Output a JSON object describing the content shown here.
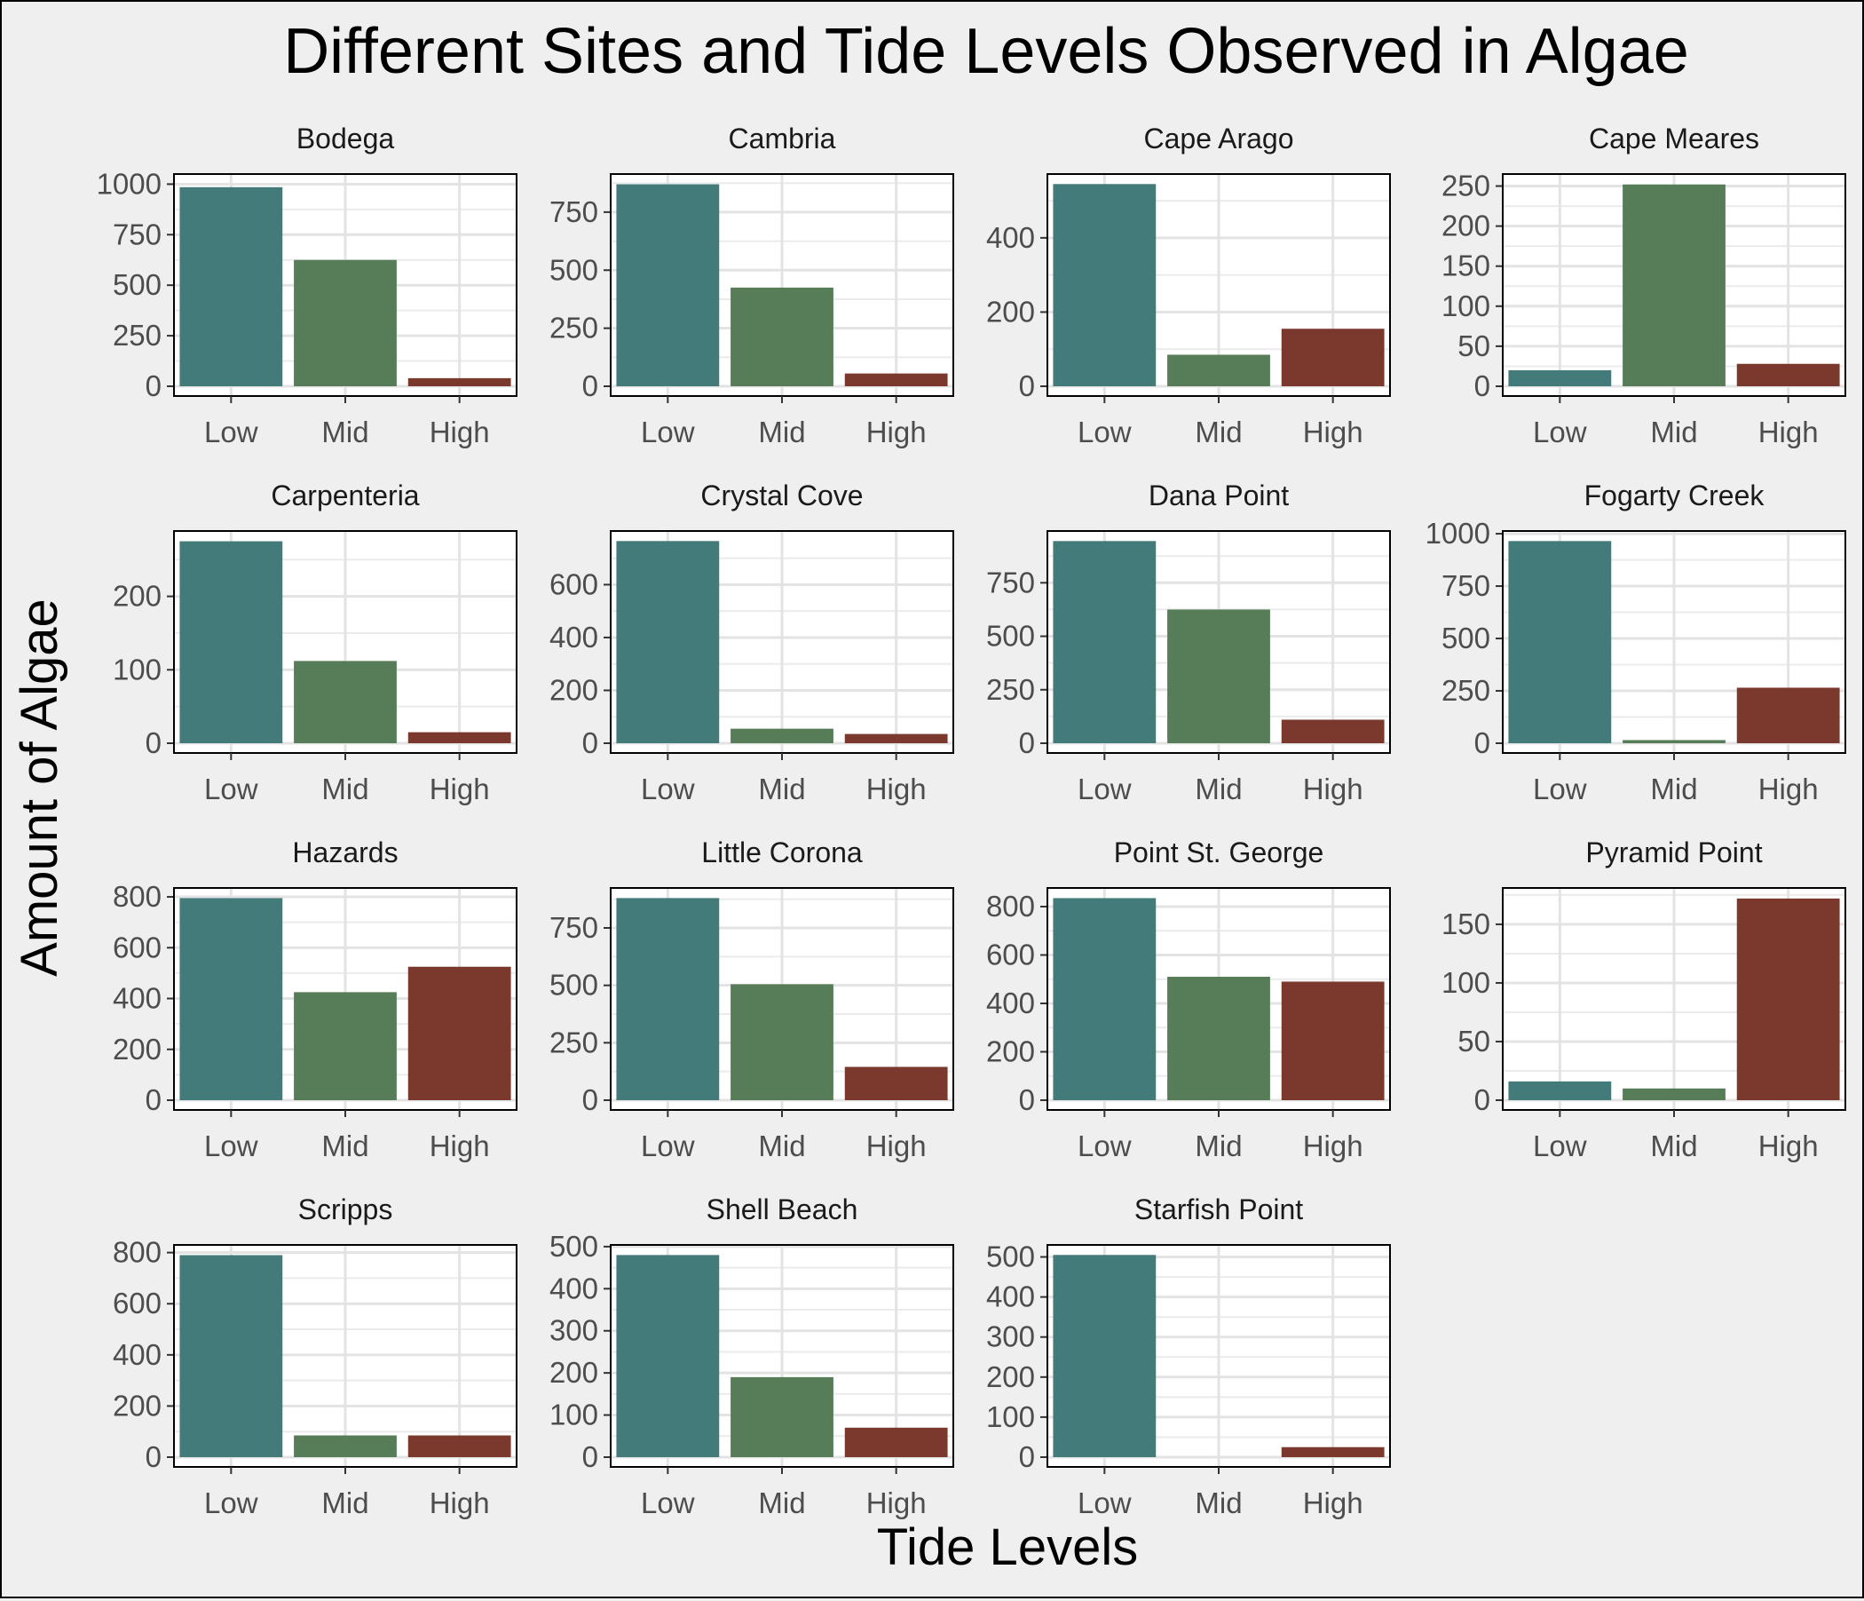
{
  "chart_data": {
    "type": "bar",
    "title": "Different Sites and Tide Levels Observed in Algae",
    "xlabel": "Tide Levels",
    "ylabel": "Amount of Algae",
    "categories": [
      "Low",
      "Mid",
      "High"
    ],
    "colors": {
      "Low": "#427b79",
      "Mid": "#567d57",
      "High": "#7a392c"
    },
    "grid": true,
    "panels": [
      {
        "name": "Bodega",
        "values": [
          985,
          625,
          40
        ],
        "ylim": [
          0,
          1050
        ],
        "yticks": [
          0,
          250,
          500,
          750,
          1000
        ]
      },
      {
        "name": "Cambria",
        "values": [
          870,
          425,
          55
        ],
        "ylim": [
          0,
          914
        ],
        "yticks": [
          0,
          250,
          500,
          750
        ]
      },
      {
        "name": "Cape Arago",
        "values": [
          545,
          85,
          155
        ],
        "ylim": [
          0,
          572
        ],
        "yticks": [
          0,
          200,
          400
        ]
      },
      {
        "name": "Cape Meares",
        "values": [
          20,
          252,
          28
        ],
        "ylim": [
          0,
          265
        ],
        "yticks": [
          0,
          50,
          100,
          150,
          200,
          250
        ]
      },
      {
        "name": "Carpenteria",
        "values": [
          275,
          112,
          15
        ],
        "ylim": [
          0,
          289
        ],
        "yticks": [
          0,
          100,
          200
        ]
      },
      {
        "name": "Crystal Cove",
        "values": [
          765,
          55,
          35
        ],
        "ylim": [
          0,
          803
        ],
        "yticks": [
          0,
          200,
          400,
          600
        ]
      },
      {
        "name": "Dana Point",
        "values": [
          945,
          625,
          110
        ],
        "ylim": [
          0,
          992
        ],
        "yticks": [
          0,
          250,
          500,
          750
        ]
      },
      {
        "name": "Fogarty Creek",
        "values": [
          965,
          15,
          265
        ],
        "ylim": [
          0,
          1013
        ],
        "yticks": [
          0,
          250,
          500,
          750,
          1000
        ]
      },
      {
        "name": "Hazards",
        "values": [
          795,
          425,
          525
        ],
        "ylim": [
          0,
          835
        ],
        "yticks": [
          0,
          200,
          400,
          600,
          800
        ]
      },
      {
        "name": "Little Corona",
        "values": [
          880,
          505,
          145
        ],
        "ylim": [
          0,
          924
        ],
        "yticks": [
          0,
          250,
          500,
          750
        ]
      },
      {
        "name": "Point St. George",
        "values": [
          835,
          510,
          490
        ],
        "ylim": [
          0,
          877
        ],
        "yticks": [
          0,
          200,
          400,
          600,
          800
        ]
      },
      {
        "name": "Pyramid Point",
        "values": [
          16,
          10,
          172
        ],
        "ylim": [
          0,
          181
        ],
        "yticks": [
          0,
          50,
          100,
          150
        ]
      },
      {
        "name": "Scripps",
        "values": [
          790,
          85,
          85
        ],
        "ylim": [
          0,
          830
        ],
        "yticks": [
          0,
          200,
          400,
          600,
          800
        ]
      },
      {
        "name": "Shell Beach",
        "values": [
          480,
          190,
          70
        ],
        "ylim": [
          0,
          504
        ],
        "yticks": [
          0,
          100,
          200,
          300,
          400,
          500
        ]
      },
      {
        "name": "Starfish Point",
        "values": [
          505,
          0,
          25
        ],
        "ylim": [
          0,
          530
        ],
        "yticks": [
          0,
          100,
          200,
          300,
          400,
          500
        ]
      }
    ]
  }
}
